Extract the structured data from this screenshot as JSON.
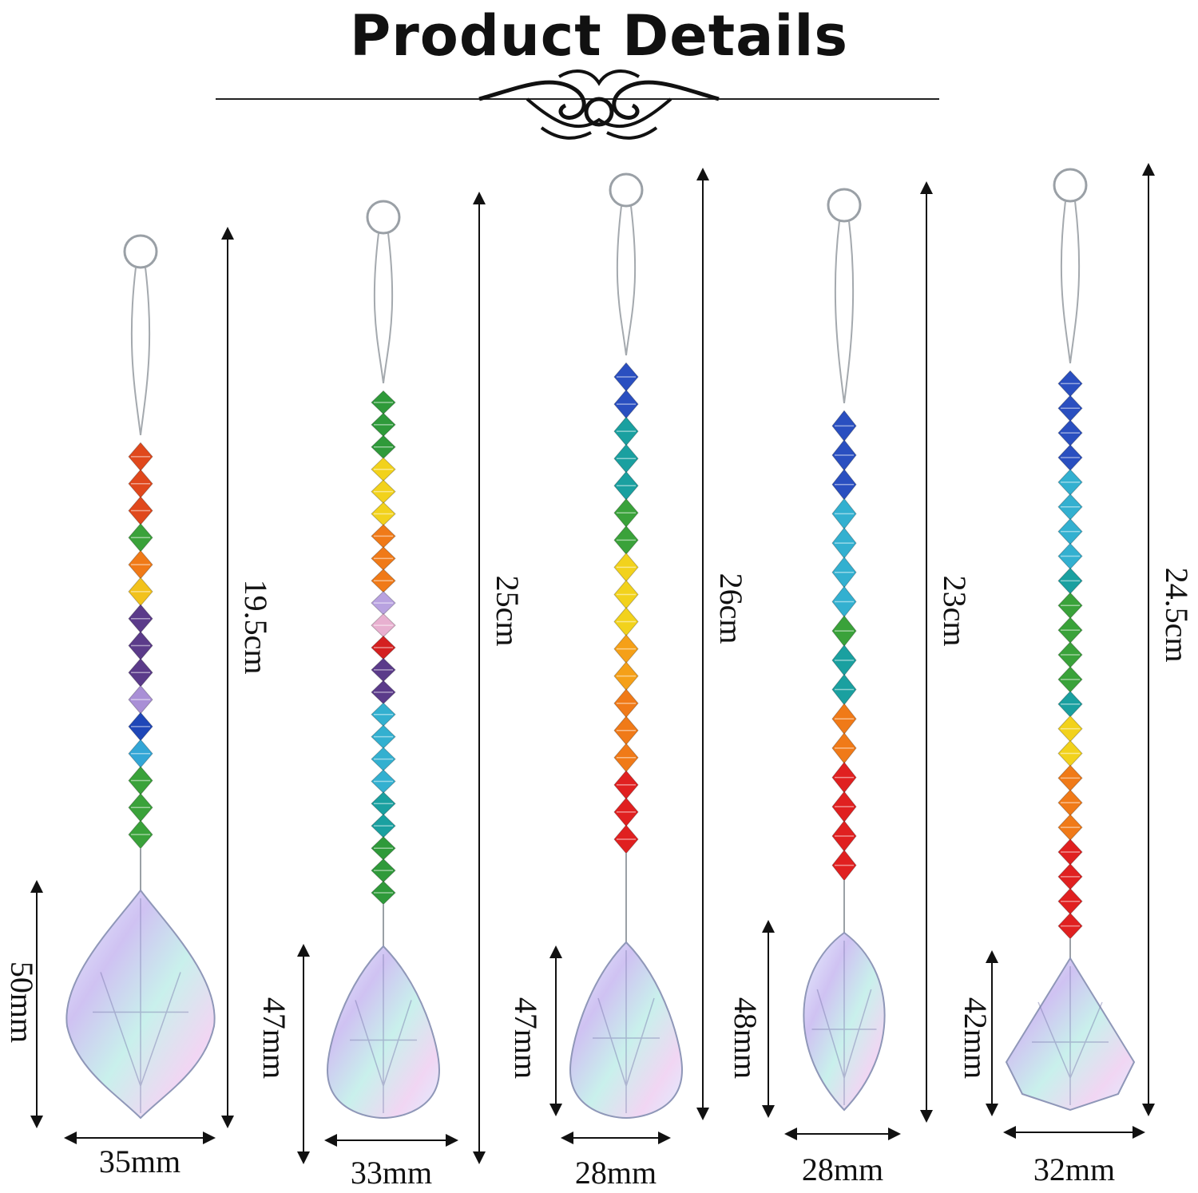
{
  "header": {
    "title": "Product Details"
  },
  "products": [
    {
      "length": "19.5cm",
      "pendant_height": "50mm",
      "pendant_width": "35mm",
      "pendant_shape": "maple-leaf",
      "beads": [
        "#e0481c",
        "#e0481c",
        "#e0481c",
        "#3aa23a",
        "#f07a18",
        "#f2c21c",
        "#5b3b8a",
        "#5b3b8a",
        "#5b3b8a",
        "#a98fd6",
        "#1f47b8",
        "#33a6d6",
        "#3aa23a",
        "#3aa23a",
        "#3aa23a"
      ]
    },
    {
      "length": "25cm",
      "pendant_height": "47mm",
      "pendant_width": "33mm",
      "pendant_shape": "teardrop",
      "beads": [
        "#2f9a3a",
        "#2f9a3a",
        "#2f9a3a",
        "#f2d21c",
        "#f2d21c",
        "#f2d21c",
        "#f07a18",
        "#f07a18",
        "#f07a18",
        "#b8a2e0",
        "#e8b0d0",
        "#d42020",
        "#5b3b8a",
        "#5b3b8a",
        "#33b0d0",
        "#33b0d0",
        "#33b0d0",
        "#33b0d0",
        "#1aa0a0",
        "#1aa0a0",
        "#2f9a3a",
        "#2f9a3a",
        "#2f9a3a"
      ]
    },
    {
      "length": "26cm",
      "pendant_height": "47mm",
      "pendant_width": "28mm",
      "pendant_shape": "teardrop",
      "beads": [
        "#2a4fc0",
        "#2a4fc0",
        "#1aa0a0",
        "#1aa0a0",
        "#1aa0a0",
        "#3aa23a",
        "#3aa23a",
        "#f2d21c",
        "#f2d21c",
        "#f2d21c",
        "#f5a018",
        "#f5a018",
        "#f07a18",
        "#f07a18",
        "#f07a18",
        "#e02020",
        "#e02020",
        "#e02020"
      ]
    },
    {
      "length": "23cm",
      "pendant_height": "48mm",
      "pendant_width": "28mm",
      "pendant_shape": "marquise",
      "beads": [
        "#2a4fc0",
        "#2a4fc0",
        "#2a4fc0",
        "#33b0d0",
        "#33b0d0",
        "#33b0d0",
        "#33b0d0",
        "#3aa23a",
        "#1aa0a0",
        "#1aa0a0",
        "#f07a18",
        "#f07a18",
        "#e02020",
        "#e02020",
        "#e02020",
        "#e02020"
      ]
    },
    {
      "length": "24.5cm",
      "pendant_height": "42mm",
      "pendant_width": "32mm",
      "pendant_shape": "cone",
      "beads": [
        "#2a4fc0",
        "#2a4fc0",
        "#2a4fc0",
        "#2a4fc0",
        "#33b0d0",
        "#33b0d0",
        "#33b0d0",
        "#33b0d0",
        "#1aa0a0",
        "#3aa23a",
        "#3aa23a",
        "#3aa23a",
        "#3aa23a",
        "#1aa0a0",
        "#f2d21c",
        "#f2d21c",
        "#f07a18",
        "#f07a18",
        "#f07a18",
        "#e02020",
        "#e02020",
        "#e02020",
        "#e02020"
      ]
    }
  ]
}
